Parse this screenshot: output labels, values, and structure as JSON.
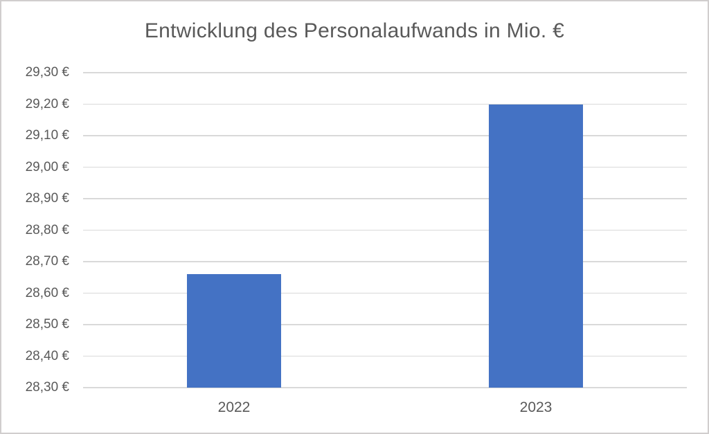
{
  "chart_data": {
    "type": "bar",
    "title": "Entwicklung des Personalaufwands in Mio. €",
    "categories": [
      "2022",
      "2023"
    ],
    "values": [
      28.66,
      29.2
    ],
    "xlabel": "",
    "ylabel": "",
    "ylim": [
      28.3,
      29.3
    ],
    "ytick_step": 0.1,
    "ytick_labels": [
      "28,30 €",
      "28,40 €",
      "28,50 €",
      "28,60 €",
      "28,70 €",
      "28,80 €",
      "28,90 €",
      "29,00 €",
      "29,10 €",
      "29,20 €",
      "29,30 €"
    ],
    "grid": true,
    "legend": false,
    "colors": {
      "bar": "#4472C4",
      "grid": "#D9D9D9",
      "text": "#595959",
      "border": "#D0CECE",
      "background": "#FFFFFF"
    }
  }
}
